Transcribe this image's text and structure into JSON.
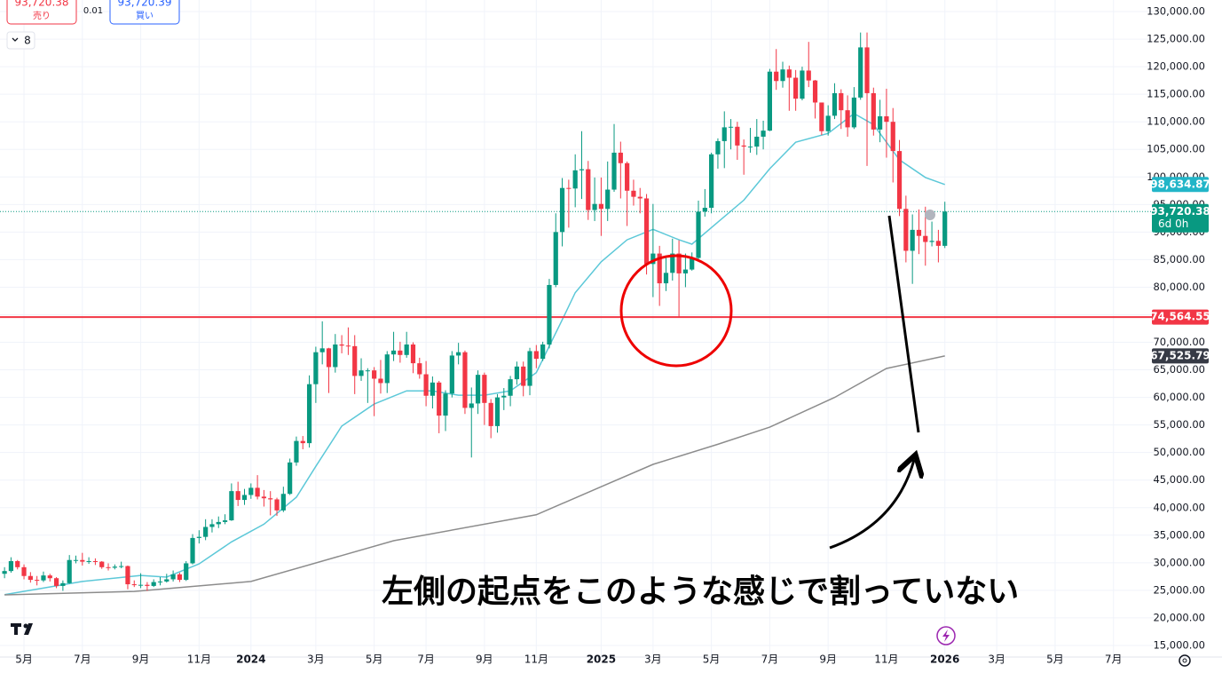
{
  "toolbar": {
    "sell_price": "93,720.38",
    "sell_label": "売り",
    "quantity": "0.01",
    "buy_price": "93,720.39",
    "buy_label": "買い",
    "indicator_count": "8"
  },
  "chart_data": {
    "type": "candlestick",
    "up_color": "#089981",
    "down_color": "#f23645",
    "open": [
      28000,
      28500,
      30300,
      29200,
      27600,
      26900,
      26800,
      27700,
      27200,
      25800,
      26300,
      30500,
      30500,
      30200,
      30300,
      30200,
      29200,
      29100,
      29300,
      29400,
      26100,
      26000,
      26000,
      25800,
      26500,
      26600,
      27000,
      27900,
      26900,
      29900,
      34500,
      34700,
      36500,
      37000,
      37400,
      37700,
      43000,
      41400,
      42300,
      43600,
      42000,
      41700,
      41500,
      39500,
      42500,
      48200,
      52100,
      51700,
      62400,
      68200,
      68900,
      65500,
      69600,
      69400,
      69300,
      63900,
      64900,
      64900,
      63400,
      62600,
      67800,
      68500,
      67700,
      69600,
      66200,
      64200,
      60300,
      62700,
      56700,
      60700,
      67600,
      68200,
      58100,
      58900,
      64100,
      59000,
      54800,
      60000,
      60300,
      63300,
      65600,
      62100,
      68400,
      67000,
      69600,
      80400,
      90000,
      98000,
      97900,
      101200,
      101400,
      94000,
      95100,
      94200,
      97700,
      104400,
      102500,
      97500,
      96400,
      96100,
      84200,
      86100,
      80700,
      82600,
      86100,
      82500,
      83200,
      85300,
      93700,
      94400,
      104100,
      106500,
      109000,
      109100,
      105700,
      105500,
      105500,
      107300,
      108400,
      119100,
      117400,
      119500,
      118000,
      114200,
      119300,
      117500,
      113500,
      108300,
      111100,
      115200,
      112100,
      109000,
      114400,
      123500,
      115200,
      108600,
      111000,
      110000,
      104700,
      94200,
      86600,
      90400,
      89300,
      88200,
      88400,
      87500
    ],
    "high": [
      29200,
      31000,
      30500,
      29700,
      28300,
      27600,
      28400,
      28000,
      27400,
      26800,
      31400,
      31300,
      31800,
      31000,
      30800,
      30300,
      29900,
      29700,
      30200,
      29500,
      26800,
      28100,
      26500,
      27000,
      27400,
      28000,
      28600,
      28200,
      30300,
      35200,
      35900,
      37900,
      37900,
      38400,
      38800,
      44400,
      44700,
      43400,
      44400,
      45900,
      43200,
      43000,
      41800,
      43800,
      48900,
      52900,
      53000,
      64000,
      69200,
      73800,
      69000,
      71500,
      71300,
      72700,
      71300,
      67100,
      65300,
      65500,
      66800,
      68400,
      71900,
      70100,
      71900,
      70000,
      67200,
      66600,
      63800,
      63000,
      61300,
      68400,
      69900,
      68500,
      61800,
      64900,
      64500,
      59700,
      60600,
      61700,
      63900,
      66500,
      66500,
      69000,
      69500,
      70100,
      81500,
      93400,
      99800,
      99500,
      104100,
      108300,
      102900,
      99900,
      99900,
      102800,
      109600,
      106400,
      102800,
      99500,
      98000,
      96900,
      95100,
      87500,
      85300,
      88800,
      88500,
      86100,
      86300,
      95700,
      97800,
      104400,
      107000,
      111900,
      110500,
      110000,
      106800,
      108900,
      110500,
      110200,
      119600,
      123200,
      120900,
      120200,
      119400,
      120000,
      124500,
      117600,
      113500,
      113000,
      117000,
      115900,
      114800,
      116300,
      126200,
      126200,
      116200,
      114000,
      116000,
      112500,
      106700,
      96600,
      93200,
      94100,
      94600,
      91900,
      90400,
      95500
    ],
    "low": [
      27200,
      28200,
      28800,
      27000,
      26400,
      25900,
      26500,
      26600,
      25400,
      24900,
      26200,
      29900,
      29500,
      29800,
      29600,
      28900,
      28600,
      28800,
      29000,
      25200,
      25600,
      25400,
      24900,
      25600,
      25900,
      26400,
      26600,
      26500,
      26700,
      29700,
      33500,
      34100,
      35500,
      36300,
      37000,
      37600,
      40300,
      40500,
      41600,
      41500,
      40200,
      38600,
      38500,
      39200,
      42300,
      47600,
      50600,
      50900,
      59000,
      66000,
      60800,
      64500,
      68000,
      67700,
      60600,
      63000,
      59000,
      56600,
      60700,
      60800,
      66600,
      66300,
      67200,
      64400,
      63400,
      58400,
      58000,
      53500,
      53900,
      60000,
      66000,
      57000,
      49100,
      57000,
      55000,
      52600,
      53600,
      57700,
      58400,
      62300,
      60200,
      60400,
      65300,
      66600,
      68900,
      80000,
      87400,
      90800,
      94500,
      96000,
      92200,
      92000,
      89300,
      92000,
      97300,
      96100,
      91100,
      94800,
      93400,
      82300,
      78200,
      76600,
      79300,
      81200,
      74564.55,
      80000,
      83000,
      84700,
      92800,
      93400,
      101500,
      101600,
      105000,
      103100,
      100400,
      104400,
      104000,
      105000,
      108300,
      115800,
      116200,
      112000,
      112000,
      113900,
      116300,
      110600,
      107600,
      107500,
      110500,
      108700,
      107300,
      108700,
      114000,
      102000,
      107500,
      106300,
      103500,
      99000,
      92900,
      84500,
      80600,
      86000,
      83900,
      87400,
      84500,
      87100
    ],
    "close": [
      28500,
      30300,
      29200,
      27600,
      26900,
      26800,
      27700,
      27200,
      25800,
      26300,
      30500,
      30500,
      30200,
      30300,
      30200,
      29200,
      29100,
      29300,
      29400,
      26100,
      26000,
      26000,
      25800,
      26500,
      26600,
      27000,
      27900,
      26900,
      29900,
      34500,
      34700,
      36500,
      37000,
      37400,
      37700,
      43000,
      41400,
      42300,
      43600,
      42000,
      41700,
      41500,
      39500,
      42500,
      48200,
      52100,
      51700,
      62400,
      68200,
      68900,
      65500,
      69600,
      69400,
      69300,
      63900,
      64900,
      64900,
      63400,
      62600,
      67800,
      68500,
      67700,
      69600,
      66200,
      64200,
      60300,
      62700,
      56700,
      60700,
      67600,
      68200,
      58100,
      58900,
      64100,
      59000,
      54800,
      60000,
      60300,
      63300,
      65600,
      62100,
      68400,
      67000,
      69600,
      80400,
      90000,
      98000,
      97900,
      101200,
      101400,
      94000,
      95100,
      94200,
      97700,
      104400,
      102500,
      97500,
      96400,
      96100,
      84200,
      86100,
      80700,
      82600,
      86100,
      82500,
      83200,
      85300,
      93700,
      94400,
      104100,
      106500,
      109000,
      109100,
      105700,
      105500,
      105500,
      107300,
      108400,
      119100,
      117400,
      119500,
      118000,
      114200,
      119300,
      117500,
      113500,
      108300,
      111100,
      115200,
      112100,
      109000,
      114400,
      123500,
      115200,
      108600,
      111000,
      110000,
      104700,
      94200,
      86600,
      90400,
      89300,
      88200,
      88400,
      87500,
      93720.38
    ],
    "xlim": [
      -0.7,
      177.2
    ],
    "xticks": [
      {
        "value": 3,
        "label": "5月"
      },
      {
        "value": 12,
        "label": "7月"
      },
      {
        "value": 21,
        "label": "9月"
      },
      {
        "value": 30,
        "label": "11月"
      },
      {
        "value": 38,
        "label": "2024"
      },
      {
        "value": 48,
        "label": "3月"
      },
      {
        "value": 57,
        "label": "5月"
      },
      {
        "value": 65,
        "label": "7月"
      },
      {
        "value": 74,
        "label": "9月"
      },
      {
        "value": 82,
        "label": "11月"
      },
      {
        "value": 92,
        "label": "2025"
      },
      {
        "value": 100,
        "label": "3月"
      },
      {
        "value": 109,
        "label": "5月"
      },
      {
        "value": 118,
        "label": "7月"
      },
      {
        "value": 127,
        "label": "9月"
      },
      {
        "value": 136,
        "label": "11月"
      },
      {
        "value": 145,
        "label": "2026"
      },
      {
        "value": 153,
        "label": "3月"
      },
      {
        "value": 162,
        "label": "5月"
      },
      {
        "value": 171,
        "label": "7月"
      }
    ],
    "ylim": [
      12900,
      132100
    ],
    "yticks": [
      {
        "value": 15000,
        "label": "15,000.00"
      },
      {
        "value": 20000,
        "label": "20,000.00"
      },
      {
        "value": 25000,
        "label": "25,000.00"
      },
      {
        "value": 30000,
        "label": "30,000.00"
      },
      {
        "value": 35000,
        "label": "35,000.00"
      },
      {
        "value": 40000,
        "label": "40,000.00"
      },
      {
        "value": 45000,
        "label": "45,000.00"
      },
      {
        "value": 50000,
        "label": "50,000.00"
      },
      {
        "value": 55000,
        "label": "55,000.00"
      },
      {
        "value": 60000,
        "label": "60,000.00"
      },
      {
        "value": 65000,
        "label": "65,000.00"
      },
      {
        "value": 70000,
        "label": "70,000.00"
      },
      {
        "value": 75000,
        "label": "75,000.00"
      },
      {
        "value": 80000,
        "label": "80,000.00"
      },
      {
        "value": 85000,
        "label": "85,000.00"
      },
      {
        "value": 90000,
        "label": "90,000.00"
      },
      {
        "value": 95000,
        "label": "95,000.00"
      },
      {
        "value": 100000,
        "label": "100,000.00"
      },
      {
        "value": 105000,
        "label": "105,000.00"
      },
      {
        "value": 110000,
        "label": "110,000.00"
      },
      {
        "value": 115000,
        "label": "115,000.00"
      },
      {
        "value": 120000,
        "label": "120,000.00"
      },
      {
        "value": 125000,
        "label": "125,000.00"
      },
      {
        "value": 130000,
        "label": "130,000.00"
      }
    ],
    "grid": true,
    "lines": [
      {
        "color": "#5cc8d8",
        "x": [
          0,
          12,
          21,
          25,
          30,
          35,
          40,
          45,
          48,
          52,
          57,
          62,
          66,
          70,
          74,
          78,
          82,
          84,
          86,
          88,
          92,
          96,
          100,
          104,
          106,
          110,
          114,
          118,
          122,
          127,
          131,
          134,
          138,
          142,
          145
        ],
        "values": [
          24200,
          26600,
          27700,
          27400,
          29800,
          33800,
          37000,
          41900,
          47500,
          54800,
          58800,
          61200,
          61200,
          60400,
          60400,
          61200,
          64500,
          69300,
          74100,
          79000,
          84600,
          88600,
          90500,
          88600,
          87800,
          91800,
          95800,
          101500,
          106300,
          107900,
          111500,
          109500,
          103100,
          99900,
          98634.87
        ]
      },
      {
        "color": "#8c8c8c",
        "x": [
          0,
          20,
          38,
          60,
          82,
          92,
          100,
          110,
          118,
          128,
          136,
          145
        ],
        "values": [
          24170,
          24800,
          26600,
          34000,
          38700,
          43800,
          47850,
          51500,
          54600,
          60000,
          65250,
          67525.79
        ]
      }
    ],
    "horizontal_line": {
      "value": 74564.55,
      "color": "#f23645"
    },
    "price_labels": [
      {
        "value": 98634.87,
        "label": "98,634.87",
        "color": "#22b5c8"
      },
      {
        "value": 93720.38,
        "label": "93,720.38",
        "sublabel": "6d 0h",
        "color": "#089981"
      },
      {
        "value": 74564.55,
        "label": "74,564.55",
        "color": "#f23645"
      },
      {
        "value": 67525.79,
        "label": "67,525.79",
        "color": "#363a45"
      }
    ],
    "annotation": "左側の起点をこのような感じで割っていない"
  }
}
